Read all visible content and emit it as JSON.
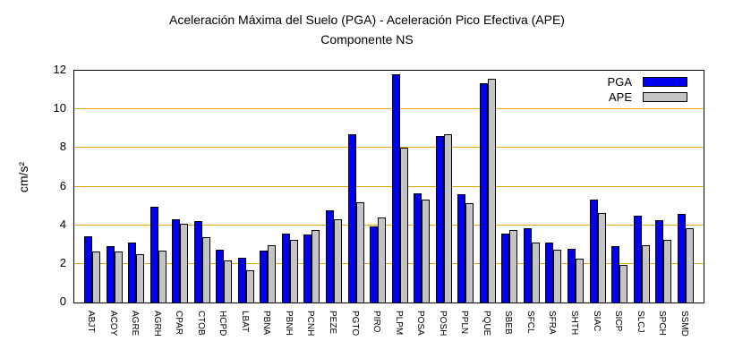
{
  "title": {
    "line1": "Aceleración Máxima del Suelo (PGA) -  Aceleración Pico Efectiva (APE)",
    "line2": "Componente NS"
  },
  "y_axis": {
    "label": "cm/s²",
    "ticks": [
      0,
      2,
      4,
      6,
      8,
      10,
      12
    ],
    "max": 12
  },
  "colors": {
    "pga": "#0000EE",
    "ape": "#C4C4C4",
    "grid": "#E8A400",
    "border": "#000000"
  },
  "chart_data": {
    "type": "bar",
    "title": "Aceleración Máxima del Suelo (PGA) -  Aceleración Pico Efectiva (APE)",
    "subtitle": "Componente NS",
    "xlabel": "",
    "ylabel": "cm/s²",
    "ylim": [
      0,
      12
    ],
    "grid": true,
    "gridlines": [
      2,
      4,
      6,
      8,
      10
    ],
    "legend_position": "top-right",
    "categories": [
      "ABJT",
      "ACOY",
      "AGRE",
      "AGRH",
      "CPAR",
      "CTOB",
      "HCPD",
      "LBAT",
      "PBNA",
      "PBNH",
      "PCNH",
      "PEZE",
      "PGTO",
      "PIRO",
      "PLPM",
      "POSA",
      "POSH",
      "PPLN",
      "PQUE",
      "SBEB",
      "SFCL",
      "SFRA",
      "SHTH",
      "SIAC",
      "SICP",
      "SLCJ",
      "SPCH",
      "SSMD"
    ],
    "series": [
      {
        "name": "PGA",
        "color": "#0000EE",
        "values": [
          3.45,
          2.9,
          3.1,
          4.95,
          4.3,
          4.2,
          2.75,
          2.3,
          2.7,
          3.55,
          3.5,
          4.75,
          8.7,
          3.95,
          11.8,
          5.65,
          8.6,
          5.6,
          11.35,
          3.55,
          3.85,
          3.1,
          2.8,
          5.35,
          2.9,
          4.5,
          4.25,
          4.6
        ]
      },
      {
        "name": "APE",
        "color": "#C4C4C4",
        "values": [
          2.65,
          2.65,
          2.5,
          2.7,
          4.1,
          3.4,
          2.2,
          1.65,
          2.95,
          3.25,
          3.75,
          4.3,
          5.2,
          4.4,
          8.0,
          5.35,
          8.7,
          5.15,
          11.6,
          3.75,
          3.1,
          2.75,
          2.25,
          4.65,
          1.95,
          2.95,
          3.25,
          3.85
        ]
      }
    ]
  }
}
